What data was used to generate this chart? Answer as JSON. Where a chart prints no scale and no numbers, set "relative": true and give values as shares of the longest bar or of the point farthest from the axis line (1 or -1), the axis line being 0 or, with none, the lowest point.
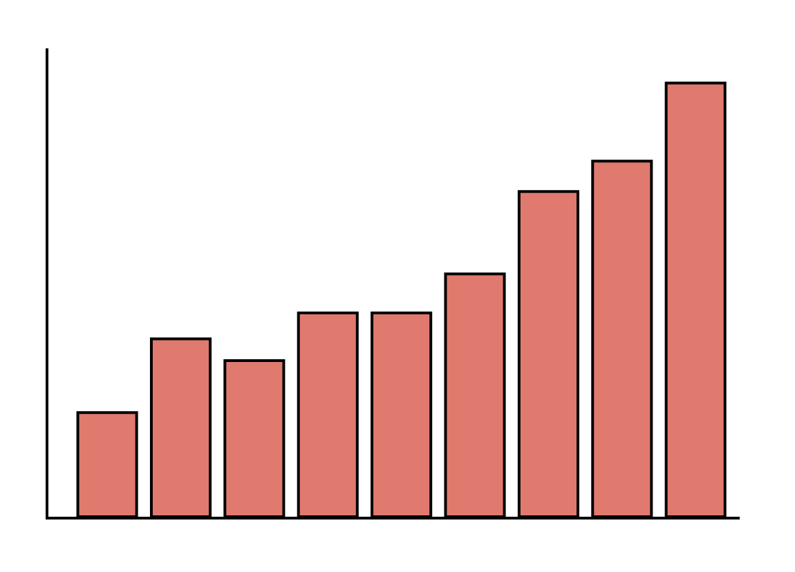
{
  "chart_data": {
    "type": "bar",
    "relative": true,
    "categories": [
      null,
      null,
      null,
      null,
      null,
      null,
      null,
      null,
      null
    ],
    "values": [
      0.24,
      0.41,
      0.36,
      0.47,
      0.47,
      0.56,
      0.75,
      0.82,
      1.0
    ],
    "color": "#e07a6e"
  }
}
